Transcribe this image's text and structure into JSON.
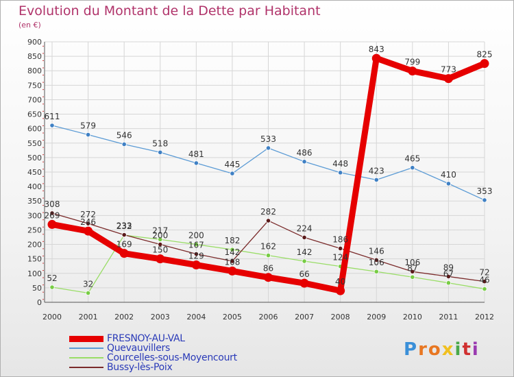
{
  "chart_data": {
    "type": "line",
    "title": "Evolution du Montant de la Dette par Habitant",
    "xlabel": "",
    "ylabel": "(en €)",
    "x": [
      "2000",
      "2001",
      "2002",
      "2003",
      "2004",
      "2005",
      "2006",
      "2007",
      "2008",
      "2009",
      "2010",
      "2011",
      "2012"
    ],
    "ylim": [
      0,
      900
    ],
    "yticks": [
      0,
      50,
      100,
      150,
      200,
      250,
      300,
      350,
      400,
      450,
      500,
      550,
      600,
      650,
      700,
      750,
      800,
      850,
      900
    ],
    "grid": true,
    "legend_position": "bottom-left",
    "series": [
      {
        "name": "FRESNOY-AU-VAL",
        "color": "#e60000",
        "point_color": "#e60000",
        "values": [
          269,
          246,
          169,
          150,
          129,
          108,
          86,
          66,
          40,
          843,
          799,
          773,
          825
        ],
        "labels": [
          "269",
          "246",
          "169",
          "150",
          "129",
          "108",
          "86",
          "66",
          "40",
          "843",
          "799",
          "773",
          "825"
        ]
      },
      {
        "name": "Quevauvillers",
        "color": "#5b9bd5",
        "point_color": "#3f80c4",
        "values": [
          611,
          579,
          546,
          518,
          481,
          445,
          533,
          486,
          448,
          423,
          465,
          410,
          353
        ],
        "labels": [
          "611",
          "579",
          "546",
          "518",
          "481",
          "445",
          "533",
          "486",
          "448",
          "423",
          "465",
          "410",
          "353"
        ]
      },
      {
        "name": "Courcelles-sous-Moyencourt",
        "color": "#99dd66",
        "point_color": "#77cc44",
        "values": [
          52,
          32,
          232,
          217,
          200,
          182,
          162,
          142,
          124,
          106,
          87,
          67,
          46
        ],
        "labels": [
          "52",
          "32",
          "232",
          "217",
          "200",
          "182",
          "162",
          "142",
          "124",
          "106",
          "87",
          "67",
          "46"
        ]
      },
      {
        "name": "Bussy-lès-Poix",
        "color": "#7a2a2a",
        "point_color": "#5a1a1a",
        "values": [
          308,
          272,
          233,
          200,
          167,
          142,
          282,
          224,
          186,
          146,
          106,
          89,
          72
        ],
        "labels": [
          "308",
          "272",
          "233",
          "200",
          "167",
          "142",
          "282",
          "224",
          "186",
          "146",
          "106",
          "89",
          "72"
        ]
      }
    ]
  },
  "branding": {
    "letters": [
      {
        "char": "P",
        "color": "#3a8fd8"
      },
      {
        "char": "r",
        "color": "#e87722"
      },
      {
        "char": "o",
        "color": "#e87722"
      },
      {
        "char": "x",
        "color": "#f0c020"
      },
      {
        "char": "i",
        "color": "#4aa84a"
      },
      {
        "char": "t",
        "color": "#d03030"
      },
      {
        "char": "i",
        "color": "#9a3ab0"
      }
    ]
  }
}
